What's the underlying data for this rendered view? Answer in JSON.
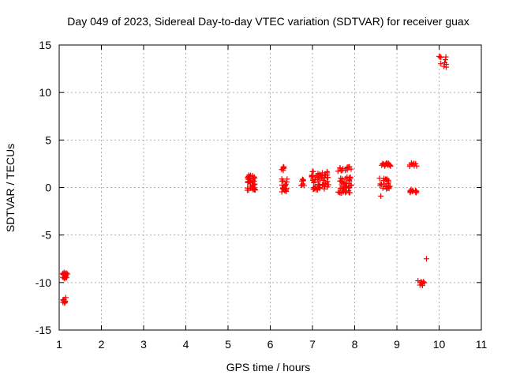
{
  "chart_data": {
    "type": "scatter",
    "title": "Day 049 of 2023, Sidereal Day-to-day VTEC variation (SDTVAR) for receiver guax",
    "xlabel": "GPS time / hours",
    "ylabel": "SDTVAR / TECUs",
    "xlim": [
      1,
      11
    ],
    "ylim": [
      -15,
      15
    ],
    "xticks": [
      "1",
      "2",
      "3",
      "4",
      "5",
      "6",
      "7",
      "8",
      "9",
      "10",
      "11"
    ],
    "yticks": [
      "-15",
      "-10",
      "-5",
      "0",
      "5",
      "10",
      "15"
    ],
    "grid": true,
    "marker": "plus",
    "series_color": "#ff0000",
    "clusters": [
      {
        "x0": 1.08,
        "x1": 1.2,
        "y0": -9.6,
        "y1": -8.9,
        "n": 18
      },
      {
        "x0": 1.08,
        "x1": 1.18,
        "y0": -12.3,
        "y1": -11.2,
        "n": 9
      },
      {
        "x0": 5.45,
        "x1": 5.65,
        "y0": -0.3,
        "y1": 1.3,
        "n": 40
      },
      {
        "x0": 6.27,
        "x1": 6.4,
        "y0": 1.8,
        "y1": 2.2,
        "n": 6
      },
      {
        "x0": 6.27,
        "x1": 6.4,
        "y0": -0.5,
        "y1": 1.0,
        "n": 20
      },
      {
        "x0": 6.72,
        "x1": 6.8,
        "y0": 0.1,
        "y1": 1.0,
        "n": 8
      },
      {
        "x0": 6.98,
        "x1": 7.38,
        "y0": -0.3,
        "y1": 1.7,
        "n": 60
      },
      {
        "x0": 7.6,
        "x1": 7.92,
        "y0": 1.6,
        "y1": 2.2,
        "n": 16
      },
      {
        "x0": 7.6,
        "x1": 7.92,
        "y0": -0.6,
        "y1": 1.1,
        "n": 45
      },
      {
        "x0": 8.58,
        "x1": 8.85,
        "y0": 2.2,
        "y1": 2.6,
        "n": 18
      },
      {
        "x0": 8.58,
        "x1": 8.85,
        "y0": -0.2,
        "y1": 1.0,
        "n": 22
      },
      {
        "x0": 9.3,
        "x1": 9.47,
        "y0": 2.1,
        "y1": 2.6,
        "n": 8
      },
      {
        "x0": 9.3,
        "x1": 9.47,
        "y0": -0.6,
        "y1": -0.1,
        "n": 14
      },
      {
        "x0": 9.5,
        "x1": 9.65,
        "y0": -10.4,
        "y1": -9.8,
        "n": 10
      },
      {
        "x0": 10.0,
        "x1": 10.18,
        "y0": 12.6,
        "y1": 13.8,
        "n": 10
      }
    ],
    "points": [
      {
        "x": 8.62,
        "y": -0.9
      },
      {
        "x": 9.7,
        "y": -7.5
      },
      {
        "x": 10.0,
        "y": 13.8
      }
    ]
  }
}
